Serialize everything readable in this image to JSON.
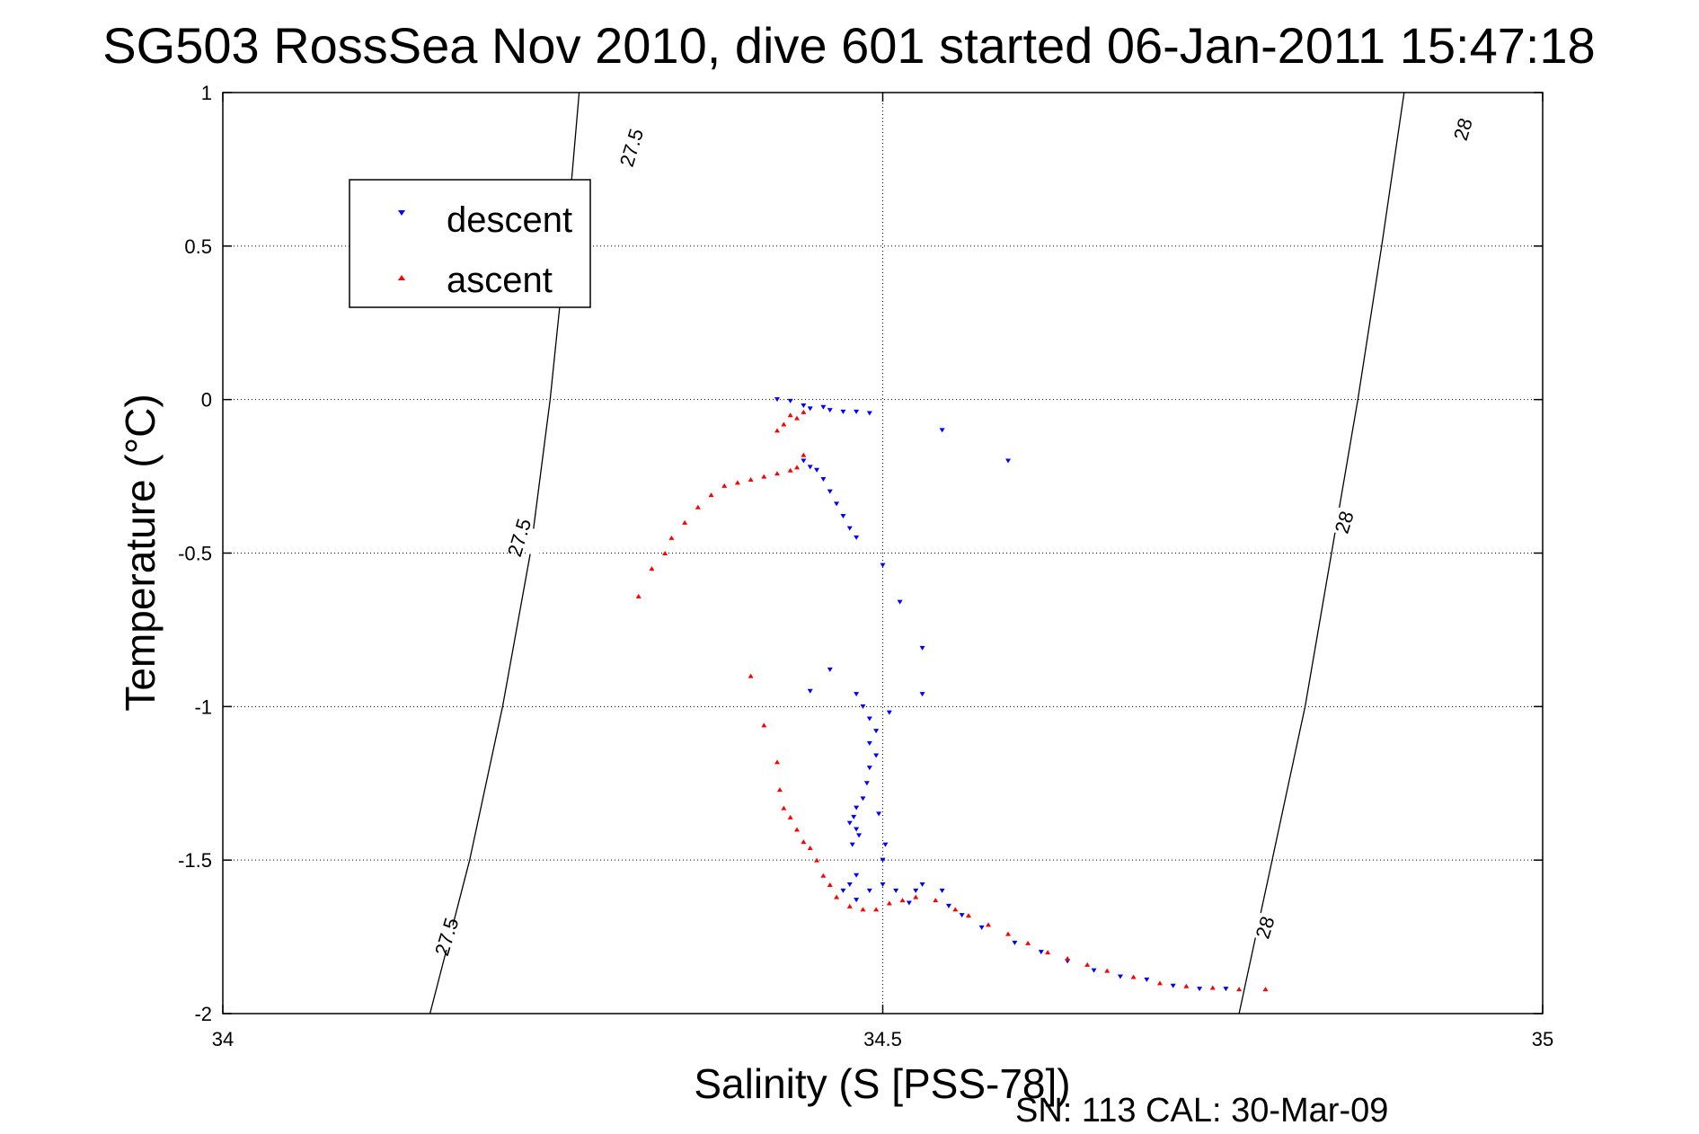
{
  "chart_data": {
    "type": "scatter",
    "title": "SG503 RossSea Nov 2010, dive 601 started 06-Jan-2011 15:47:18",
    "xlabel": "Salinity (S [PSS-78])",
    "ylabel": "Temperature (°C)",
    "xlim": [
      34,
      35
    ],
    "ylim": [
      -2,
      1
    ],
    "x_ticks": [
      34,
      34.5,
      35
    ],
    "x_tick_labels": [
      "34",
      "34.5",
      "35"
    ],
    "y_ticks": [
      1,
      0.5,
      0,
      -0.5,
      -1,
      -1.5,
      -2
    ],
    "y_tick_labels": [
      "1",
      "0.5",
      "0",
      "-0.5",
      "-1",
      "-1.5",
      "-2"
    ],
    "grid": true,
    "legend_position": "top-left",
    "footer_text": "SN: 113  CAL: 30-Mar-09",
    "colors": {
      "descent": "#0000ff",
      "ascent": "#ff0000",
      "axes": "#000000",
      "grid": "#000000"
    },
    "contours": [
      {
        "label": "27.5",
        "points": [
          [
            34.157,
            -2
          ],
          [
            34.187,
            -1.5
          ],
          [
            34.212,
            -1
          ],
          [
            34.233,
            -0.5
          ],
          [
            34.248,
            0
          ],
          [
            34.26,
            0.5
          ],
          [
            34.27,
            1
          ]
        ],
        "label_positions": [
          [
            34.17,
            -1.75
          ],
          [
            34.225,
            -0.45
          ],
          [
            34.31,
            0.82
          ]
        ]
      },
      {
        "label": "28",
        "points": [
          [
            34.77,
            -2
          ],
          [
            34.795,
            -1.5
          ],
          [
            34.82,
            -1
          ],
          [
            34.84,
            -0.5
          ],
          [
            34.86,
            0
          ],
          [
            34.878,
            0.5
          ],
          [
            34.895,
            1
          ]
        ],
        "label_positions": [
          [
            34.79,
            -1.72
          ],
          [
            34.85,
            -0.4
          ],
          [
            34.94,
            0.88
          ]
        ]
      }
    ],
    "series": [
      {
        "name": "descent",
        "marker": "triangle-down",
        "color": "#0000ff",
        "points": [
          [
            34.42,
            0.0
          ],
          [
            34.43,
            -0.005
          ],
          [
            34.44,
            -0.02
          ],
          [
            34.445,
            -0.03
          ],
          [
            34.455,
            -0.025
          ],
          [
            34.46,
            -0.035
          ],
          [
            34.47,
            -0.04
          ],
          [
            34.48,
            -0.04
          ],
          [
            34.49,
            -0.045
          ],
          [
            34.545,
            -0.1
          ],
          [
            34.595,
            -0.2
          ],
          [
            34.44,
            -0.2
          ],
          [
            34.445,
            -0.22
          ],
          [
            34.45,
            -0.23
          ],
          [
            34.455,
            -0.26
          ],
          [
            34.46,
            -0.3
          ],
          [
            34.465,
            -0.34
          ],
          [
            34.47,
            -0.38
          ],
          [
            34.475,
            -0.42
          ],
          [
            34.48,
            -0.45
          ],
          [
            34.5,
            -0.54
          ],
          [
            34.513,
            -0.66
          ],
          [
            34.53,
            -0.81
          ],
          [
            34.53,
            -0.96
          ],
          [
            34.46,
            -0.88
          ],
          [
            34.445,
            -0.95
          ],
          [
            34.48,
            -0.96
          ],
          [
            34.485,
            -1.0
          ],
          [
            34.49,
            -1.04
          ],
          [
            34.495,
            -1.08
          ],
          [
            34.49,
            -1.12
          ],
          [
            34.495,
            -1.16
          ],
          [
            34.49,
            -1.2
          ],
          [
            34.488,
            -1.25
          ],
          [
            34.485,
            -1.3
          ],
          [
            34.48,
            -1.33
          ],
          [
            34.478,
            -1.36
          ],
          [
            34.475,
            -1.38
          ],
          [
            34.48,
            -1.4
          ],
          [
            34.482,
            -1.42
          ],
          [
            34.477,
            -1.45
          ],
          [
            34.5,
            -1.5
          ],
          [
            34.502,
            -1.45
          ],
          [
            34.497,
            -1.35
          ],
          [
            34.505,
            -1.02
          ],
          [
            34.48,
            -1.55
          ],
          [
            34.475,
            -1.58
          ],
          [
            34.47,
            -1.6
          ],
          [
            34.48,
            -1.63
          ],
          [
            34.49,
            -1.6
          ],
          [
            34.5,
            -1.58
          ],
          [
            34.51,
            -1.6
          ],
          [
            34.52,
            -1.64
          ],
          [
            34.525,
            -1.6
          ],
          [
            34.53,
            -1.58
          ],
          [
            34.545,
            -1.6
          ],
          [
            34.55,
            -1.65
          ],
          [
            34.56,
            -1.68
          ],
          [
            34.575,
            -1.72
          ],
          [
            34.6,
            -1.77
          ],
          [
            34.62,
            -1.8
          ],
          [
            34.64,
            -1.83
          ],
          [
            34.66,
            -1.86
          ],
          [
            34.68,
            -1.88
          ],
          [
            34.7,
            -1.89
          ],
          [
            34.72,
            -1.91
          ],
          [
            34.74,
            -1.92
          ],
          [
            34.76,
            -1.92
          ]
        ]
      },
      {
        "name": "ascent",
        "marker": "triangle-up",
        "color": "#ff0000",
        "points": [
          [
            34.43,
            -0.05
          ],
          [
            34.435,
            -0.06
          ],
          [
            34.44,
            -0.04
          ],
          [
            34.425,
            -0.08
          ],
          [
            34.42,
            -0.1
          ],
          [
            34.44,
            -0.18
          ],
          [
            34.435,
            -0.22
          ],
          [
            34.43,
            -0.23
          ],
          [
            34.42,
            -0.24
          ],
          [
            34.41,
            -0.25
          ],
          [
            34.4,
            -0.26
          ],
          [
            34.39,
            -0.27
          ],
          [
            34.38,
            -0.28
          ],
          [
            34.37,
            -0.31
          ],
          [
            34.36,
            -0.35
          ],
          [
            34.35,
            -0.4
          ],
          [
            34.34,
            -0.45
          ],
          [
            34.335,
            -0.5
          ],
          [
            34.325,
            -0.55
          ],
          [
            34.315,
            -0.64
          ],
          [
            34.4,
            -0.9
          ],
          [
            34.41,
            -1.06
          ],
          [
            34.42,
            -1.18
          ],
          [
            34.422,
            -1.27
          ],
          [
            34.425,
            -1.33
          ],
          [
            34.43,
            -1.36
          ],
          [
            34.435,
            -1.4
          ],
          [
            34.44,
            -1.44
          ],
          [
            34.445,
            -1.46
          ],
          [
            34.45,
            -1.5
          ],
          [
            34.455,
            -1.55
          ],
          [
            34.46,
            -1.58
          ],
          [
            34.465,
            -1.62
          ],
          [
            34.475,
            -1.65
          ],
          [
            34.485,
            -1.66
          ],
          [
            34.495,
            -1.66
          ],
          [
            34.505,
            -1.64
          ],
          [
            34.515,
            -1.63
          ],
          [
            34.525,
            -1.62
          ],
          [
            34.54,
            -1.63
          ],
          [
            34.555,
            -1.66
          ],
          [
            34.565,
            -1.68
          ],
          [
            34.58,
            -1.71
          ],
          [
            34.595,
            -1.74
          ],
          [
            34.61,
            -1.77
          ],
          [
            34.625,
            -1.8
          ],
          [
            34.64,
            -1.82
          ],
          [
            34.655,
            -1.84
          ],
          [
            34.67,
            -1.86
          ],
          [
            34.69,
            -1.88
          ],
          [
            34.71,
            -1.9
          ],
          [
            34.73,
            -1.91
          ],
          [
            34.75,
            -1.915
          ],
          [
            34.77,
            -1.92
          ],
          [
            34.79,
            -1.92
          ]
        ]
      }
    ]
  }
}
